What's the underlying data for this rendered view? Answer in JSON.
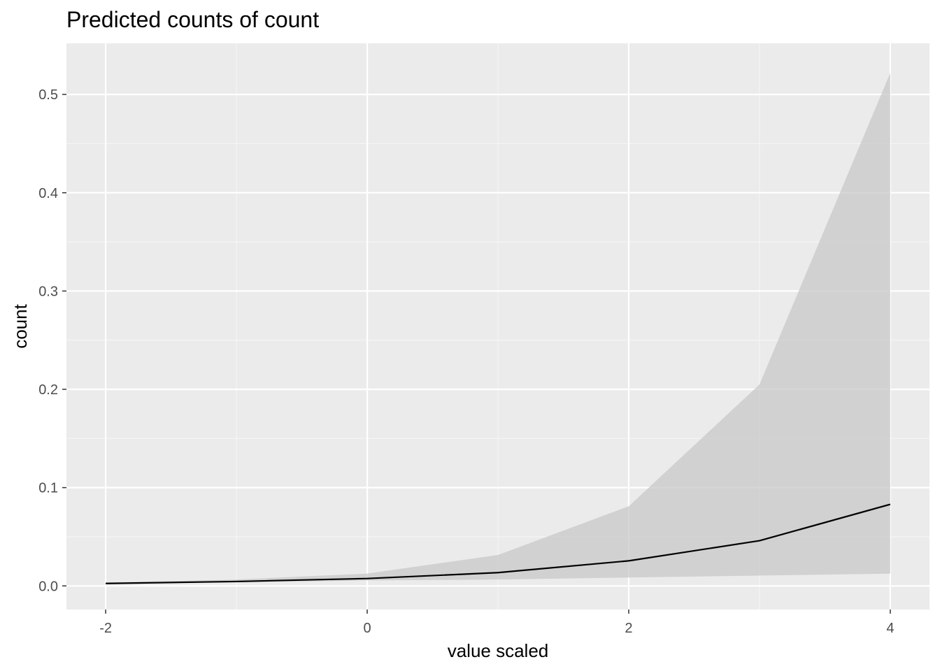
{
  "chart_data": {
    "type": "line",
    "title": "Predicted counts of count",
    "xlabel": "value scaled",
    "ylabel": "count",
    "xlim": [
      -2.3,
      4.3
    ],
    "ylim": [
      -0.024,
      0.552
    ],
    "x_ticks": [
      -2,
      0,
      2,
      4
    ],
    "x_tick_labels": [
      "-2",
      "0",
      "2",
      "4"
    ],
    "y_ticks": [
      0.0,
      0.1,
      0.2,
      0.3,
      0.4,
      0.5
    ],
    "y_tick_labels": [
      "0.0",
      "0.1",
      "0.2",
      "0.3",
      "0.4",
      "0.5"
    ],
    "grid": true,
    "legend": "none",
    "series": [
      {
        "x": [
          -2,
          -1,
          0,
          1,
          2,
          3,
          4
        ],
        "values": [
          0.0025,
          0.0045,
          0.0075,
          0.0135,
          0.0255,
          0.046,
          0.083
        ],
        "lower": [
          0.0015,
          0.0035,
          0.0055,
          0.0065,
          0.0085,
          0.0105,
          0.0125
        ],
        "upper": [
          0.0035,
          0.0065,
          0.0125,
          0.0315,
          0.081,
          0.205,
          0.522
        ],
        "color": "#000000",
        "ribbon_color": "#cccccc"
      }
    ]
  },
  "colors": {
    "panel_background": "#ebebeb",
    "grid_major": "#ffffff",
    "grid_minor": "#f5f5f5",
    "ribbon": "#c8c8c8",
    "line": "#000000"
  }
}
